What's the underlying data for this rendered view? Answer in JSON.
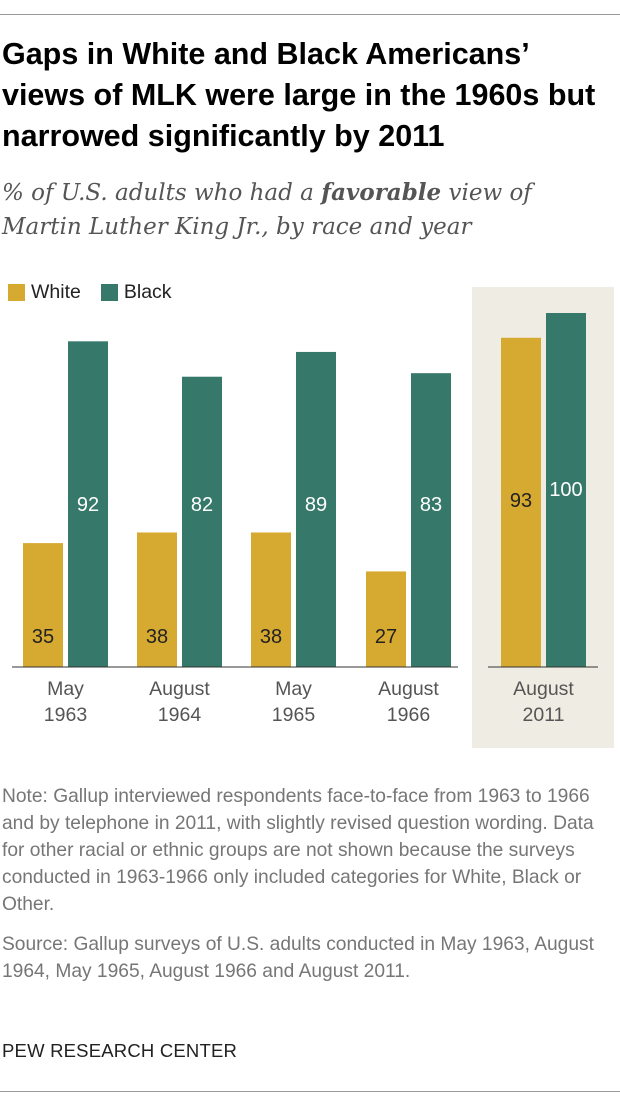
{
  "title": "Gaps in White and Black Americans’ views of MLK were large in the 1960s but narrowed significantly by 2011",
  "subtitle": {
    "before": "% of U.S. adults who had a ",
    "emphasis": "favorable",
    "after": " view of Martin Luther King Jr., by race and year"
  },
  "note": "Note: Gallup interviewed respondents face-to-face from 1963 to 1966 and by telephone in 2011, with slightly revised question wording. Data for other racial or ethnic groups are not shown because the surveys conducted in 1963-1966 only included categories for White, Black or Other.",
  "source": "Source: Gallup surveys of U.S. adults conducted in May 1963, August 1964, May 1965, August 1966 and August 2011.",
  "organization": "PEW RESEARCH CENTER",
  "colors": {
    "white": "#d6a930",
    "black": "#36796a",
    "highlight_band": "#efece3"
  },
  "chart_data": {
    "type": "bar",
    "title": "Gaps in White and Black Americans’ views of MLK were large in the 1960s but narrowed significantly by 2011",
    "subtitle": "% of U.S. adults who had a favorable view of Martin Luther King Jr., by race and year",
    "categories": [
      [
        "May",
        "1963"
      ],
      [
        "August",
        "1964"
      ],
      [
        "May",
        "1965"
      ],
      [
        "August",
        "1966"
      ],
      [
        "August",
        "2011"
      ]
    ],
    "series": [
      {
        "name": "White",
        "color": "#d6a930",
        "values": [
          35,
          38,
          38,
          27,
          93
        ]
      },
      {
        "name": "Black",
        "color": "#36796a",
        "values": [
          92,
          82,
          89,
          83,
          100
        ]
      }
    ],
    "ylim": [
      0,
      100
    ],
    "grid": false,
    "legend": "top-left",
    "highlighted_category": 4
  }
}
